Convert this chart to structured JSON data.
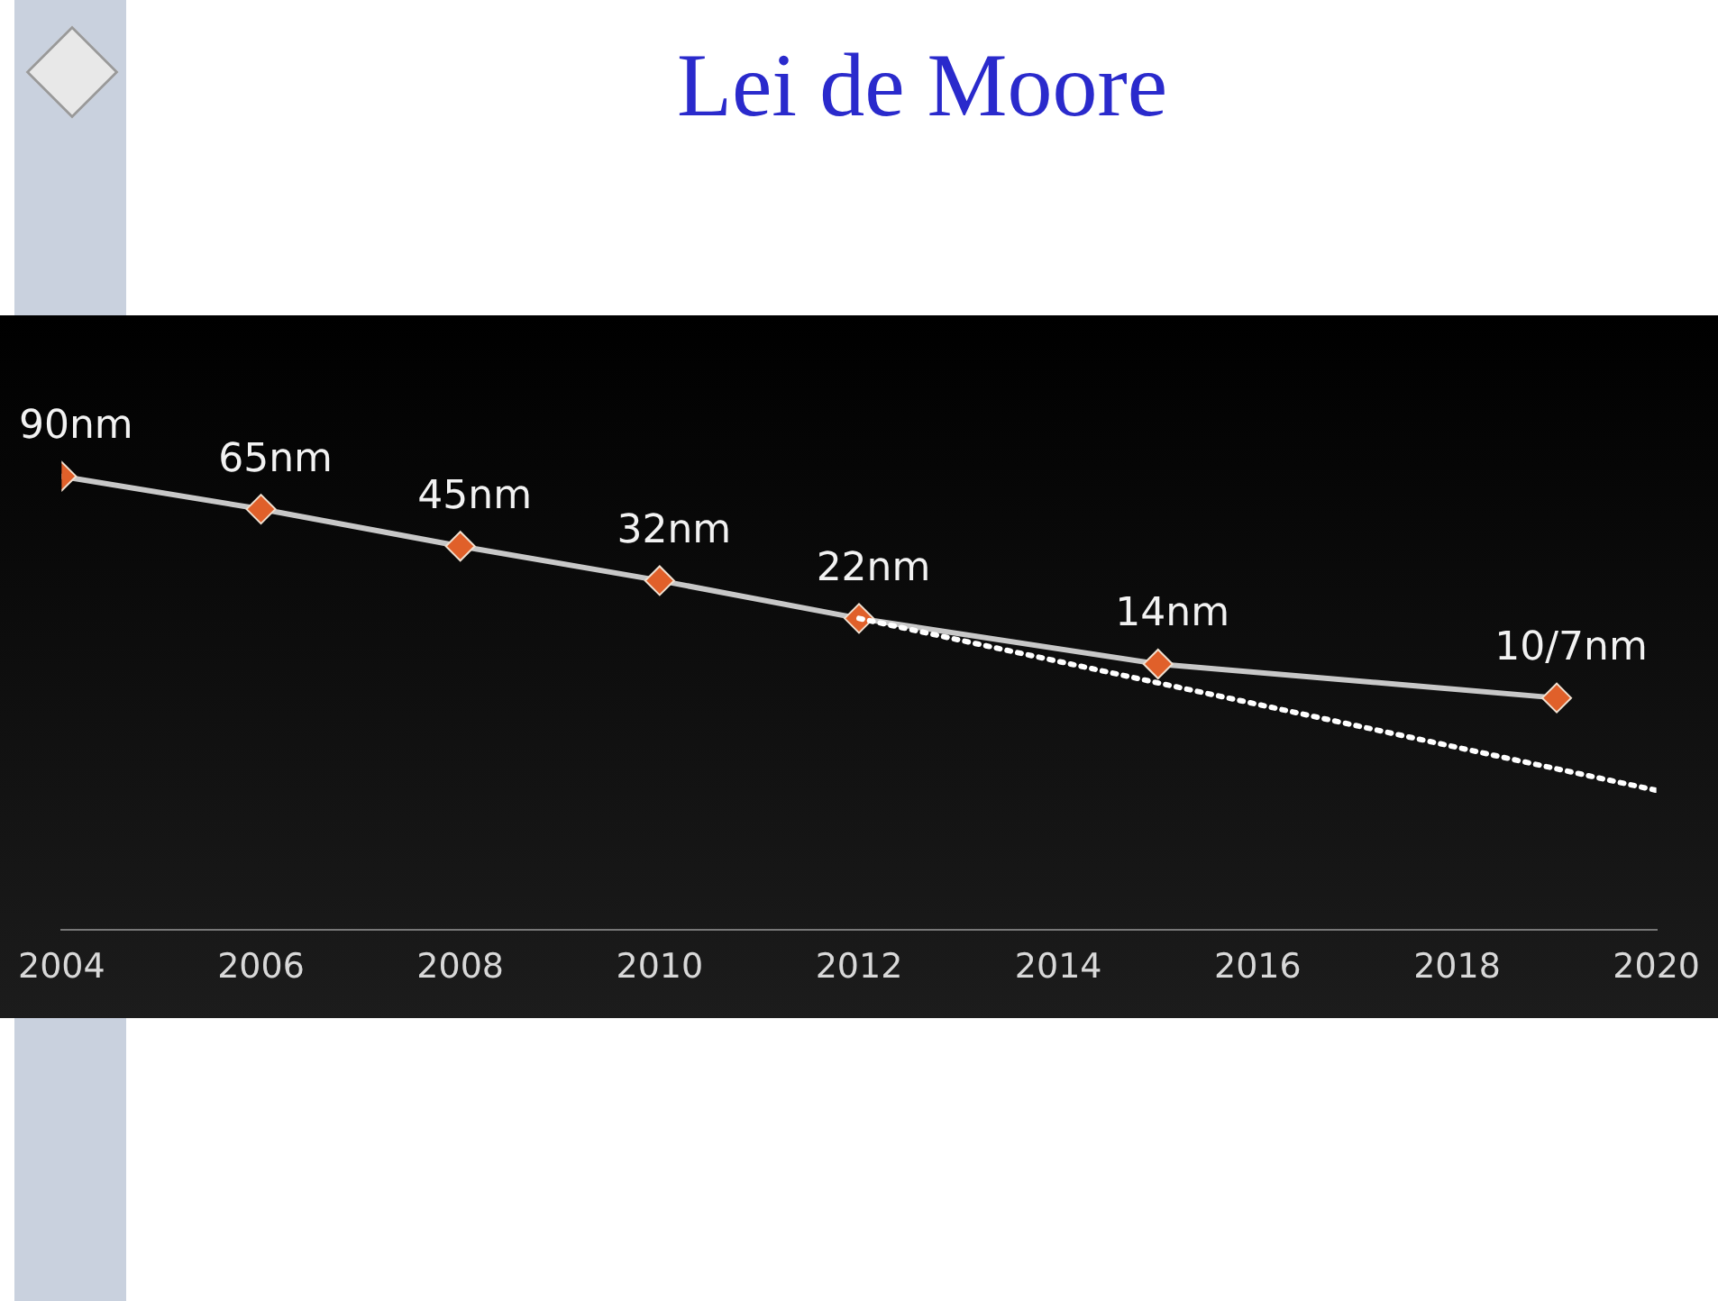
{
  "chart_data": {
    "type": "line",
    "title": "Lei de Moore",
    "log": "y",
    "x": [
      2004,
      2006,
      2008,
      2010,
      2012,
      2015,
      2019
    ],
    "xlim": [
      2004,
      2020
    ],
    "xticks": [
      2004,
      2006,
      2008,
      2010,
      2012,
      2014,
      2016,
      2018,
      2020
    ],
    "grid": false,
    "legend": false,
    "tick_labels": "x",
    "series": [
      {
        "color": "#c8c8c8",
        "colors": [
          "#e0602a",
          "#e0602a",
          "#e0602a",
          "#e0602a",
          "#e0602a",
          "#e0602a",
          "#e0602a"
        ],
        "marker": "diamond",
        "line_style": "solid",
        "values": [
          90,
          65,
          45,
          32,
          22,
          14,
          10
        ],
        "value_labels": [
          "90nm",
          "65nm",
          "45nm",
          "32nm",
          "22nm",
          "14nm",
          "10/7nm"
        ]
      },
      {
        "color": "#ffffff",
        "marker": "none",
        "line_style": "dotted",
        "x": [
          2012,
          2020
        ],
        "values": [
          22,
          4
        ]
      }
    ]
  }
}
